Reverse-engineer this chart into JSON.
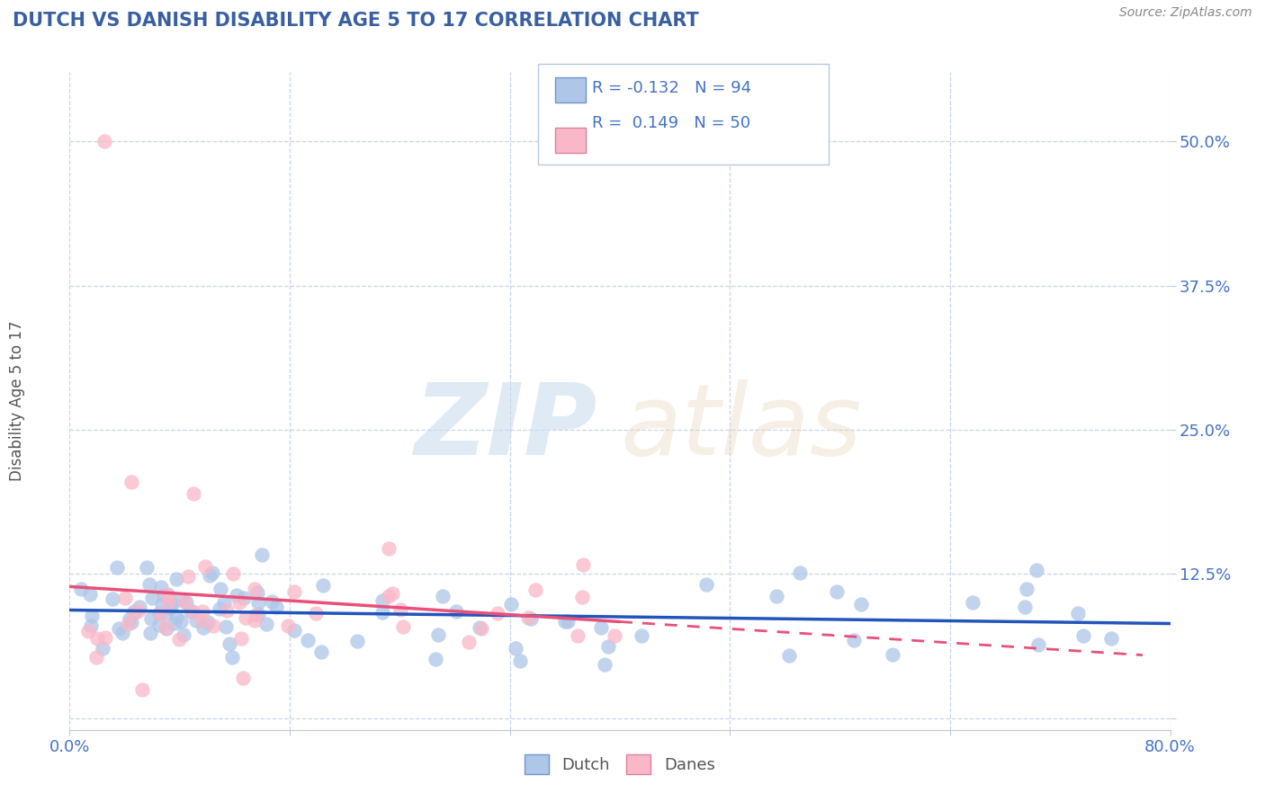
{
  "title": "DUTCH VS DANISH DISABILITY AGE 5 TO 17 CORRELATION CHART",
  "source": "Source: ZipAtlas.com",
  "ylabel": "Disability Age 5 to 17",
  "xlim": [
    0.0,
    0.8
  ],
  "ylim": [
    -0.01,
    0.56
  ],
  "yticks": [
    0.0,
    0.125,
    0.25,
    0.375,
    0.5
  ],
  "yticklabels": [
    "",
    "12.5%",
    "25.0%",
    "37.5%",
    "50.0%"
  ],
  "xticks": [
    0.0,
    0.16,
    0.32,
    0.48,
    0.64,
    0.8
  ],
  "xticklabels": [
    "0.0%",
    "",
    "",
    "",
    "",
    "80.0%"
  ],
  "dutch_color": "#aec6e8",
  "danes_color": "#f9b8c8",
  "dutch_line_color": "#2255bb",
  "danes_line_color": "#e8507a",
  "legend_dutch_R": "-0.132",
  "legend_dutch_N": "94",
  "legend_danes_R": "0.149",
  "legend_danes_N": "50",
  "background_color": "#ffffff",
  "grid_color": "#c8d4e8",
  "title_color": "#3a5fa0",
  "axis_label_color": "#555555",
  "tick_label_color": "#4472c4",
  "source_color": "#888888"
}
